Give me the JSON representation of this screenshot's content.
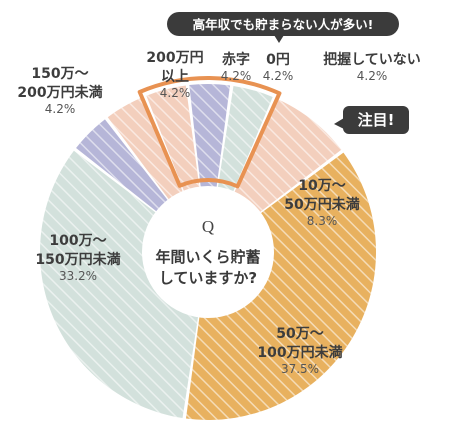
{
  "banner": "高年収でも貯まらない人が多い!",
  "callout": "注目!",
  "center_question": {
    "q": "Q",
    "line1": "年間いくら貯蓄",
    "line2": "していますか?"
  },
  "chart_data": {
    "type": "pie",
    "title": "",
    "unit": "%",
    "slices": [
      {
        "label_lines": [
          "0円"
        ],
        "value": 4.2,
        "value_text": "4.2%",
        "color": "#b6b6d8",
        "highlight": true
      },
      {
        "label_lines": [
          "把握していない"
        ],
        "value": 4.2,
        "value_text": "4.2%",
        "color": "#d3e1dc",
        "highlight": true
      },
      {
        "label_lines": [
          "10万～",
          "50万円未満"
        ],
        "value": 8.3,
        "value_text": "8.3%",
        "color": "#f3cfbd",
        "highlight": false
      },
      {
        "label_lines": [
          "50万～",
          "100万円未満"
        ],
        "value": 37.5,
        "value_text": "37.5%",
        "color": "#e8b15f",
        "highlight": false
      },
      {
        "label_lines": [
          "100万～",
          "150万円未満"
        ],
        "value": 33.2,
        "value_text": "33.2%",
        "color": "#d3e1dc",
        "highlight": false
      },
      {
        "label_lines": [
          "150万～",
          "200万円未満"
        ],
        "value": 4.2,
        "value_text": "4.2%",
        "color": "#b6b6d8",
        "highlight": false
      },
      {
        "label_lines": [
          "200万円",
          "以上"
        ],
        "value": 4.2,
        "value_text": "4.2%",
        "color": "#f3cfbd",
        "highlight": false
      },
      {
        "label_lines": [
          "赤字"
        ],
        "value": 4.2,
        "value_text": "4.2%",
        "color": "#f3cfbd",
        "highlight": true
      }
    ],
    "highlight_color": "#e89252"
  }
}
